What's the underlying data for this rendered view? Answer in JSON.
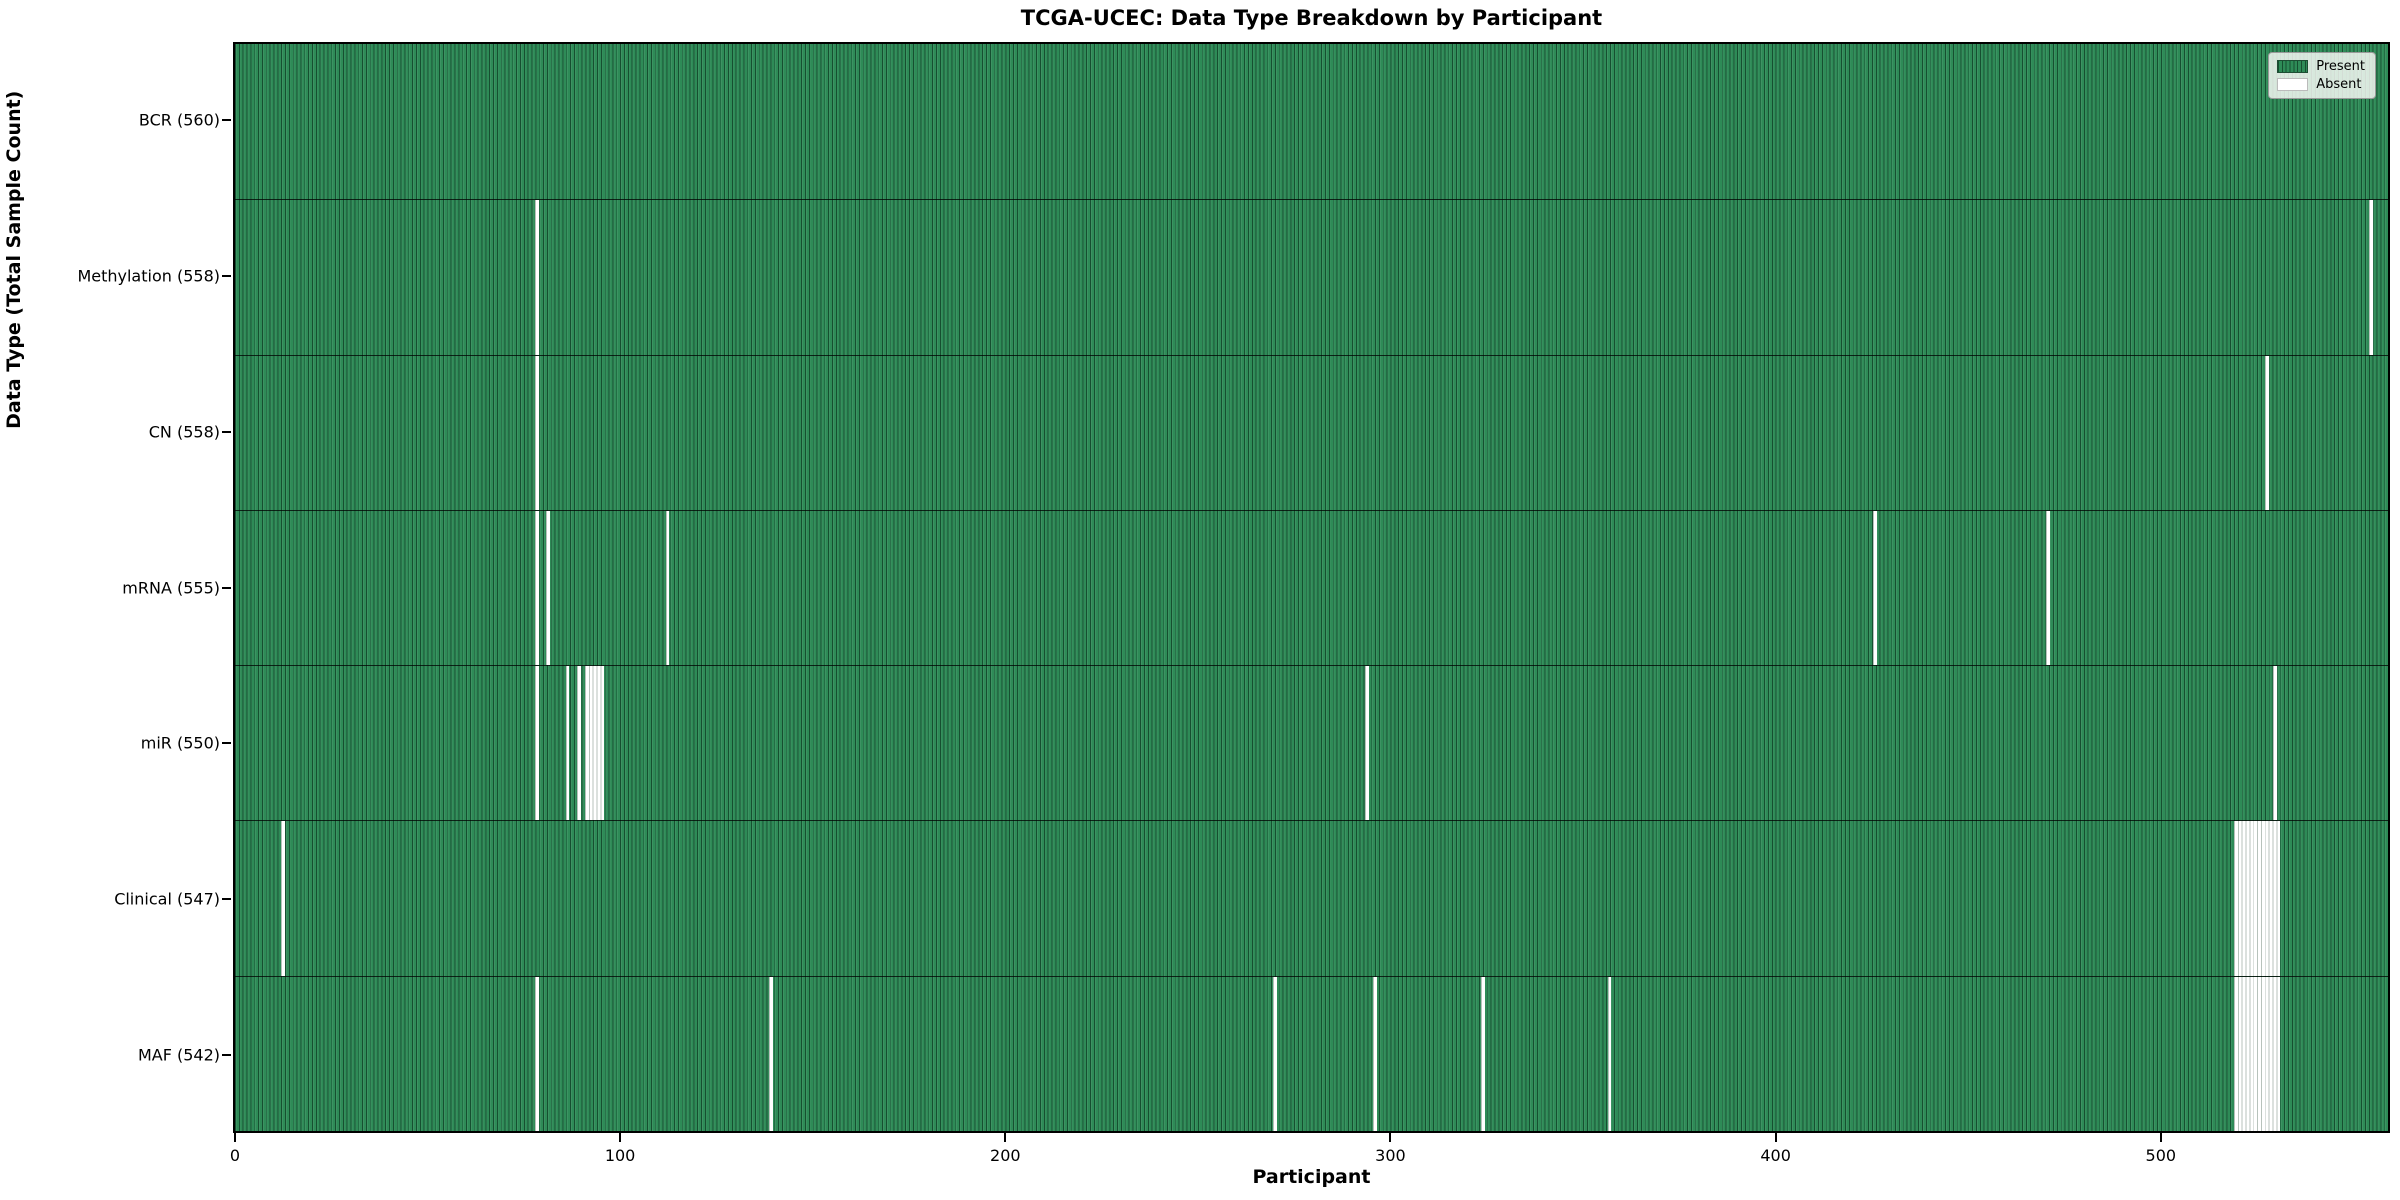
{
  "title": "TCGA-UCEC: Data Type Breakdown by Participant",
  "xlabel": "Participant",
  "ylabel": "Data Type (Total Sample Count)",
  "legend": {
    "present_label": "Present",
    "absent_label": "Absent"
  },
  "colors": {
    "present": "#2e8b57",
    "present_edge": "#16492e",
    "absent": "#ffffff",
    "figure_background": "#ffffff",
    "axis_border": "#000000"
  },
  "axes": {
    "x_ticks": [
      0,
      100,
      200,
      300,
      400,
      500
    ],
    "x_min": 0,
    "x_max": 560,
    "grid": false,
    "legend_position": "upper right"
  },
  "chart_data": {
    "type": "heatmap",
    "title": "TCGA-UCEC: Data Type Breakdown by Participant",
    "xlabel": "Participant",
    "ylabel": "Data Type (Total Sample Count)",
    "total_participants": 560,
    "value_encoding": {
      "present": "green cell",
      "absent": "white cell"
    },
    "rows": [
      {
        "label": "BCR (560)",
        "data_type": "BCR",
        "present_count": 560,
        "absent_count": 0,
        "absent_participants": []
      },
      {
        "label": "Methylation (558)",
        "data_type": "Methylation",
        "present_count": 558,
        "absent_count": 2,
        "absent_participants": [
          78,
          555
        ]
      },
      {
        "label": "CN (558)",
        "data_type": "CN",
        "present_count": 558,
        "absent_count": 2,
        "absent_participants": [
          78,
          528
        ]
      },
      {
        "label": "mRNA (555)",
        "data_type": "mRNA",
        "present_count": 555,
        "absent_count": 5,
        "absent_participants": [
          78,
          81,
          112,
          426,
          471
        ]
      },
      {
        "label": "miR (550)",
        "data_type": "miR",
        "present_count": 550,
        "absent_count": 10,
        "absent_participants": [
          78,
          86,
          89,
          91,
          92,
          93,
          94,
          95,
          294,
          530
        ]
      },
      {
        "label": "Clinical (547)",
        "data_type": "Clinical",
        "present_count": 547,
        "absent_count": 13,
        "absent_participants": [
          12,
          520,
          521,
          522,
          523,
          524,
          525,
          526,
          527,
          528,
          529,
          530,
          531
        ]
      },
      {
        "label": "MAF (542)",
        "data_type": "MAF",
        "present_count": 542,
        "absent_count": 18,
        "absent_participants": [
          78,
          139,
          270,
          296,
          324,
          357,
          520,
          521,
          522,
          523,
          524,
          525,
          526,
          527,
          528,
          529,
          530,
          531
        ]
      }
    ]
  }
}
